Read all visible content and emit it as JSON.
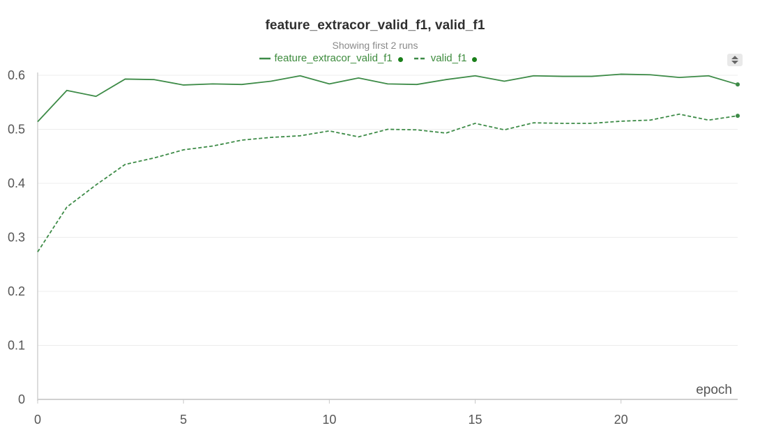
{
  "chart_data": {
    "type": "line",
    "title": "feature_extracor_valid_f1, valid_f1",
    "subtitle": "Showing first 2 runs",
    "xlabel": "epoch",
    "ylabel": "",
    "xlim": [
      0,
      24
    ],
    "ylim": [
      0,
      0.6
    ],
    "x_ticks": [
      0,
      5,
      10,
      15,
      20
    ],
    "y_ticks": [
      0,
      0.1,
      0.2,
      0.3,
      0.4,
      0.5,
      0.6
    ],
    "grid": true,
    "legend_position": "top-center",
    "x": [
      0,
      1,
      2,
      3,
      4,
      5,
      6,
      7,
      8,
      9,
      10,
      11,
      12,
      13,
      14,
      15,
      16,
      17,
      18,
      19,
      20,
      21,
      22,
      23,
      24
    ],
    "series": [
      {
        "name": "feature_extracor_valid_f1",
        "style": "solid",
        "color": "#3d8b47",
        "values": [
          0.514,
          0.572,
          0.561,
          0.593,
          0.592,
          0.582,
          0.584,
          0.583,
          0.589,
          0.599,
          0.584,
          0.595,
          0.584,
          0.583,
          0.592,
          0.599,
          0.589,
          0.599,
          0.598,
          0.598,
          0.602,
          0.601,
          0.596,
          0.599,
          0.583
        ]
      },
      {
        "name": "valid_f1",
        "style": "dashed",
        "color": "#3d8b47",
        "values": [
          0.273,
          0.356,
          0.397,
          0.435,
          0.447,
          0.462,
          0.469,
          0.48,
          0.485,
          0.488,
          0.497,
          0.486,
          0.5,
          0.499,
          0.493,
          0.511,
          0.499,
          0.512,
          0.511,
          0.511,
          0.515,
          0.517,
          0.528,
          0.517,
          0.525
        ]
      }
    ]
  },
  "ui": {
    "dot_color": "#1a7f1a",
    "sort_toggle_icon": "sort-up-down-icon"
  }
}
